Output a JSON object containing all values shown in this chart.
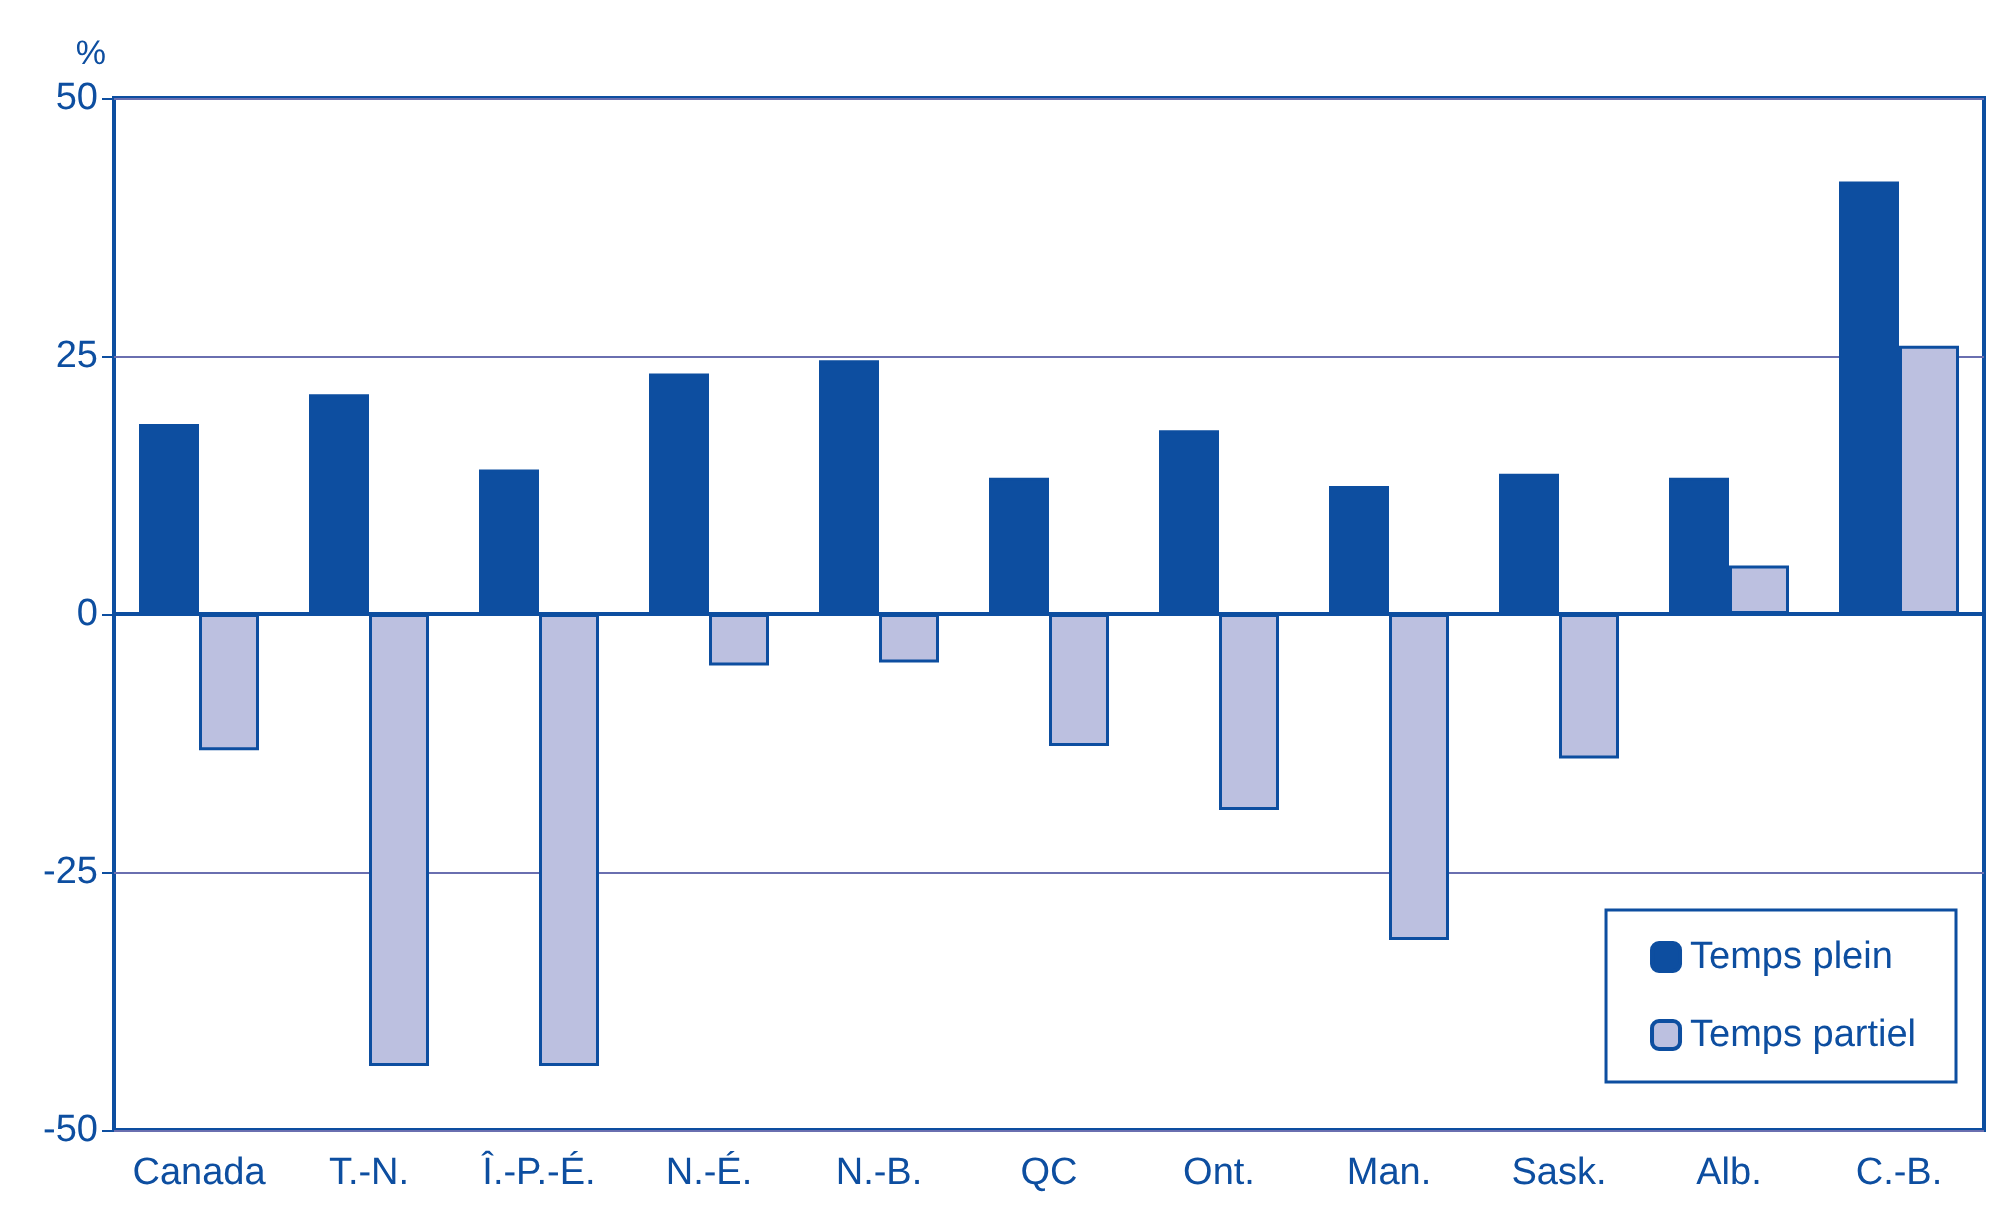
{
  "chart_data": {
    "type": "bar",
    "ylabel": "%",
    "categories": [
      "Canada",
      "T.-N.",
      "Î.-P.-É.",
      "N.-É.",
      "N.-B.",
      "QC",
      "Ont.",
      "Man.",
      "Sask.",
      "Alb.",
      "C.-B."
    ],
    "series": [
      {
        "name": "Temps plein",
        "color": "#0d4ea0",
        "values": [
          18.4,
          21.3,
          14.0,
          23.3,
          24.6,
          13.2,
          17.8,
          12.4,
          13.6,
          13.2,
          41.9
        ]
      },
      {
        "name": "Temps partiel",
        "color": "#bcc0e0",
        "values": [
          -13.2,
          -43.8,
          -43.8,
          -5.0,
          -4.7,
          -12.8,
          -19.0,
          -31.6,
          -14.0,
          4.7,
          26.0
        ]
      }
    ],
    "ylim": [
      -50,
      50
    ],
    "yticks": [
      -50,
      -25,
      0,
      25,
      50
    ],
    "ref_lines": [
      {
        "axis": "y",
        "value": 0,
        "color": "#0d4ea0"
      }
    ],
    "grid": "y",
    "legend": "bottom right"
  }
}
